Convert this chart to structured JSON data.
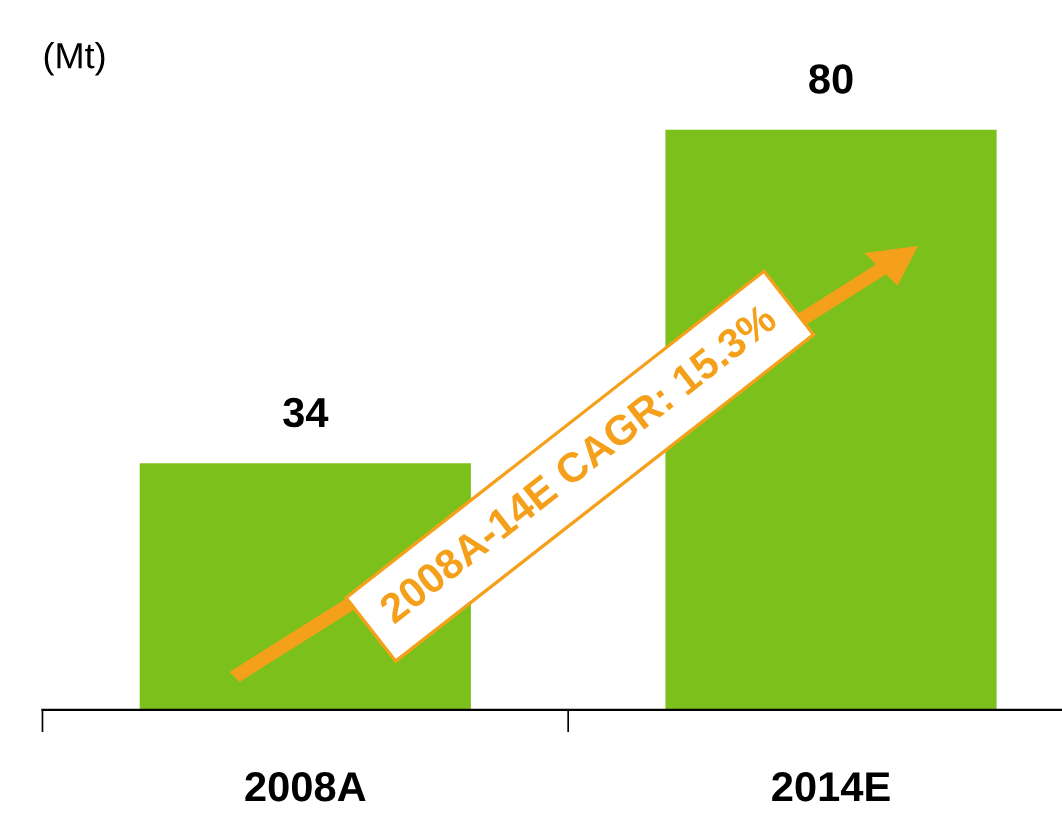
{
  "chart_data": {
    "type": "bar",
    "ylabel": "(Mt)",
    "categories": [
      "2008A",
      "2014E"
    ],
    "values": [
      34,
      80
    ],
    "color": "#7cc01c",
    "data_labels": true,
    "grid": false,
    "annotations": [
      "2008A-14E CAGR: 15.3%"
    ]
  }
}
